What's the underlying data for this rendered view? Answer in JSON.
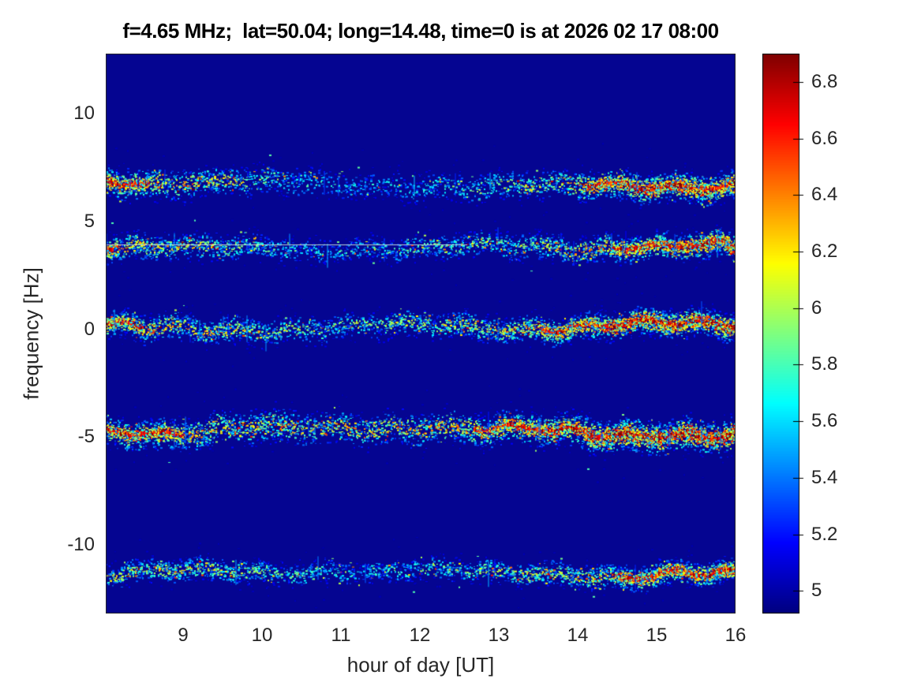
{
  "figure": {
    "title": "f=4.65 MHz;  lat=50.04; long=14.48, time=0 is at 2026 02 17 08:00"
  },
  "chart_data": {
    "type": "heatmap",
    "subtype": "doppler-spectrogram",
    "title": "f=4.65 MHz;  lat=50.04; long=14.48, time=0 is at 2026 02 17 08:00",
    "xlabel": "hour of day [UT]",
    "ylabel": "frequency [Hz]",
    "xlim": [
      8.02,
      16.0
    ],
    "ylim": [
      -13.2,
      12.8
    ],
    "xticks": [
      9,
      10,
      11,
      12,
      13,
      14,
      15,
      16
    ],
    "xtick_labels": [
      "9",
      "10",
      "11",
      "12",
      "13",
      "14",
      "15",
      "16"
    ],
    "yticks": [
      10,
      5,
      0,
      -5,
      -10
    ],
    "ytick_labels": [
      "10",
      "5",
      "0",
      "-5",
      "-10"
    ],
    "grid": false,
    "colormap": "jet",
    "background_color": "#050591",
    "colorbar": {
      "position": "right",
      "range": [
        4.92,
        6.9
      ],
      "ticks": [
        5,
        5.2,
        5.4,
        5.6,
        5.8,
        6,
        6.2,
        6.4,
        6.6,
        6.8
      ],
      "tick_labels": [
        "5",
        "5.2",
        "5.4",
        "5.6",
        "5.8",
        "6",
        "6.2",
        "6.4",
        "6.6",
        "6.8"
      ]
    },
    "bands": [
      {
        "name": "band-plus-6.9Hz",
        "center_hz": 6.9,
        "spread_hz": 0.55,
        "profile": [
          [
            8.0,
            0.72
          ],
          [
            9.0,
            0.65
          ],
          [
            9.8,
            0.52
          ],
          [
            10.5,
            0.35
          ],
          [
            11.3,
            0.3
          ],
          [
            12.2,
            0.36
          ],
          [
            13.0,
            0.48
          ],
          [
            13.8,
            0.58
          ],
          [
            14.4,
            0.78
          ],
          [
            15.0,
            0.84
          ],
          [
            16.0,
            0.85
          ]
        ]
      },
      {
        "name": "band-plus-3.9Hz",
        "center_hz": 3.9,
        "spread_hz": 0.5,
        "profile": [
          [
            8.0,
            0.7
          ],
          [
            8.6,
            0.6
          ],
          [
            9.5,
            0.5
          ],
          [
            10.3,
            0.36
          ],
          [
            11.2,
            0.33
          ],
          [
            12.0,
            0.42
          ],
          [
            12.8,
            0.48
          ],
          [
            13.6,
            0.55
          ],
          [
            14.4,
            0.68
          ],
          [
            15.2,
            0.8
          ],
          [
            16.0,
            0.84
          ]
        ]
      },
      {
        "name": "band-0Hz",
        "center_hz": 0.05,
        "spread_hz": 0.5,
        "profile": [
          [
            8.0,
            0.72
          ],
          [
            9.0,
            0.64
          ],
          [
            10.0,
            0.54
          ],
          [
            11.0,
            0.46
          ],
          [
            12.0,
            0.5
          ],
          [
            13.0,
            0.6
          ],
          [
            14.0,
            0.75
          ],
          [
            14.8,
            0.88
          ],
          [
            16.0,
            0.9
          ]
        ]
      },
      {
        "name": "band-minus-4.7Hz",
        "center_hz": -4.7,
        "spread_hz": 0.6,
        "profile": [
          [
            8.0,
            0.72
          ],
          [
            9.0,
            0.68
          ],
          [
            10.0,
            0.66
          ],
          [
            11.0,
            0.6
          ],
          [
            12.0,
            0.64
          ],
          [
            13.0,
            0.7
          ],
          [
            14.0,
            0.8
          ],
          [
            14.6,
            0.92
          ],
          [
            16.0,
            0.95
          ]
        ]
      },
      {
        "name": "band-minus-11.4Hz",
        "center_hz": -11.4,
        "spread_hz": 0.45,
        "profile": [
          [
            8.0,
            0.55
          ],
          [
            9.0,
            0.58
          ],
          [
            10.0,
            0.48
          ],
          [
            11.0,
            0.36
          ],
          [
            12.0,
            0.42
          ],
          [
            13.0,
            0.5
          ],
          [
            14.0,
            0.6
          ],
          [
            14.8,
            0.72
          ],
          [
            16.0,
            0.8
          ]
        ]
      }
    ],
    "pilot_line": {
      "freq_hz": 3.95,
      "from_hour": 8.02,
      "to_hour": 12.6
    }
  }
}
